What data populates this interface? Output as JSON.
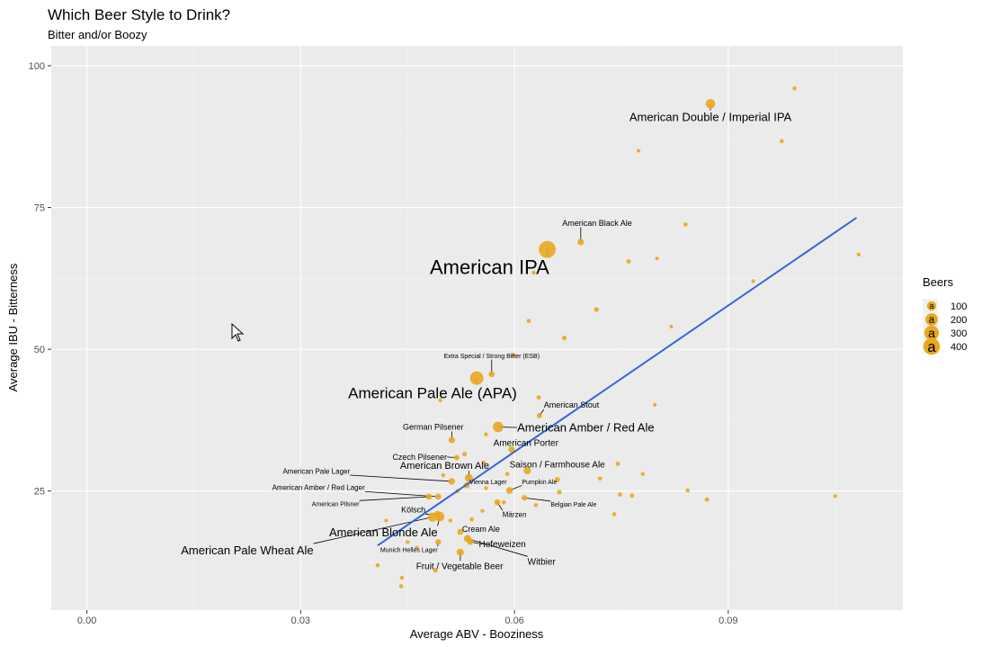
{
  "chart_data": {
    "type": "scatter",
    "title": "Which Beer Style to Drink?",
    "subtitle": "Bitter and/or Boozy",
    "xlabel": "Average ABV - Booziness",
    "ylabel": "Average IBU - Bitterness",
    "xlim": [
      -0.005,
      0.1145
    ],
    "ylim": [
      4,
      103.5
    ],
    "x_ticks": [
      0.0,
      0.03,
      0.06,
      0.09
    ],
    "x_tick_labels": [
      "0.00",
      "0.03",
      "0.06",
      "0.09"
    ],
    "y_ticks": [
      25,
      50,
      75,
      100
    ],
    "y_tick_labels": [
      "25",
      "50",
      "75",
      "100"
    ],
    "grid": true,
    "legend": {
      "title": "Beers",
      "position": "right",
      "entries": [
        {
          "label": "100",
          "value": 100
        },
        {
          "label": "200",
          "value": 200
        },
        {
          "label": "300",
          "value": 300
        },
        {
          "label": "400",
          "value": 400
        }
      ]
    },
    "point_color": "#E8A820",
    "trend_line": {
      "color": "#3366DD",
      "x": [
        0.0408,
        0.108
      ],
      "y": [
        15.4,
        73.2
      ]
    },
    "labeled_points": [
      {
        "name": "American Double / Imperial IPA",
        "x": 0.0875,
        "y": 93.3,
        "beers": 105,
        "lx": 0.0875,
        "ly": 91.0,
        "size": 13
      },
      {
        "name": "American IPA",
        "x": 0.0646,
        "y": 67.6,
        "beers": 424,
        "lx": 0.0565,
        "ly": 64.5,
        "size": 22
      },
      {
        "name": "American Black Ale",
        "x": 0.0693,
        "y": 68.9,
        "beers": 36,
        "lx": 0.0716,
        "ly": 72.3,
        "size": 9
      },
      {
        "name": "Extra Special / Strong Bitter (ESB)",
        "x": 0.0568,
        "y": 45.6,
        "beers": 28,
        "lx": 0.0568,
        "ly": 48.8,
        "size": 7
      },
      {
        "name": "American Pale Ale (APA)",
        "x": 0.0547,
        "y": 44.9,
        "beers": 245,
        "lx": 0.0485,
        "ly": 42.3,
        "size": 17
      },
      {
        "name": "American Stout",
        "x": 0.0635,
        "y": 38.3,
        "beers": 18,
        "lx": 0.068,
        "ly": 40.2,
        "size": 9
      },
      {
        "name": "American Amber / Red Ale",
        "x": 0.0577,
        "y": 36.3,
        "beers": 133,
        "lx": 0.07,
        "ly": 36.2,
        "size": 13
      },
      {
        "name": "German Pilsener",
        "x": 0.0512,
        "y": 34.0,
        "beers": 36,
        "lx": 0.0486,
        "ly": 36.3,
        "size": 9
      },
      {
        "name": "American Porter",
        "x": 0.0596,
        "y": 32.3,
        "beers": 39,
        "lx": 0.0616,
        "ly": 33.5,
        "size": 10
      },
      {
        "name": "Czech Pilsener",
        "x": 0.0519,
        "y": 30.9,
        "beers": 20,
        "lx": 0.0467,
        "ly": 31.0,
        "size": 9
      },
      {
        "name": "Saison / Farmhouse Ale",
        "x": 0.0618,
        "y": 28.6,
        "beers": 52,
        "lx": 0.066,
        "ly": 29.7,
        "size": 10
      },
      {
        "name": "American Brown Ale",
        "x": 0.0536,
        "y": 27.3,
        "beers": 70,
        "lx": 0.0502,
        "ly": 29.5,
        "size": 11
      },
      {
        "name": "American Pale Lager",
        "x": 0.0512,
        "y": 26.7,
        "beers": 39,
        "lx": 0.0322,
        "ly": 28.5,
        "size": 8
      },
      {
        "name": "Vienna Lager",
        "x": 0.0533,
        "y": 26.0,
        "beers": 30,
        "lx": 0.0563,
        "ly": 26.6,
        "size": 7
      },
      {
        "name": "Pumpkin Ale",
        "x": 0.0593,
        "y": 25.1,
        "beers": 40,
        "lx": 0.0635,
        "ly": 26.6,
        "size": 7
      },
      {
        "name": "American Amber / Red Lager",
        "x": 0.0493,
        "y": 24.0,
        "beers": 29,
        "lx": 0.0325,
        "ly": 25.6,
        "size": 8
      },
      {
        "name": "American Pilsner",
        "x": 0.048,
        "y": 24.0,
        "beers": 28,
        "lx": 0.0349,
        "ly": 22.7,
        "size": 7
      },
      {
        "name": "Belgian Pale Ale",
        "x": 0.0614,
        "y": 23.8,
        "beers": 23,
        "lx": 0.0683,
        "ly": 22.6,
        "size": 7
      },
      {
        "name": "Kölsch",
        "x": 0.0492,
        "y": 20.9,
        "beers": 42,
        "lx": 0.0458,
        "ly": 21.7,
        "size": 9
      },
      {
        "name": "Märzen",
        "x": 0.0576,
        "y": 23.0,
        "beers": 30,
        "lx": 0.06,
        "ly": 20.9,
        "size": 8
      },
      {
        "name": "American Blonde Ale",
        "x": 0.0495,
        "y": 20.5,
        "beers": 108,
        "lx": 0.0416,
        "ly": 17.7,
        "size": 13
      },
      {
        "name": "American Pale Wheat Ale",
        "x": 0.0485,
        "y": 20.4,
        "beers": 97,
        "lx": 0.0225,
        "ly": 14.6,
        "size": 13
      },
      {
        "name": "Munich Helles Lager",
        "x": 0.0493,
        "y": 16.0,
        "beers": 24,
        "lx": 0.0452,
        "ly": 14.6,
        "size": 7
      },
      {
        "name": "Cream Ale",
        "x": 0.0524,
        "y": 17.8,
        "beers": 31,
        "lx": 0.0553,
        "ly": 18.3,
        "size": 9
      },
      {
        "name": "Hefeweizen",
        "x": 0.0538,
        "y": 16.1,
        "beers": 40,
        "lx": 0.0583,
        "ly": 15.7,
        "size": 10
      },
      {
        "name": "Witbier",
        "x": 0.0534,
        "y": 16.6,
        "beers": 51,
        "lx": 0.0638,
        "ly": 12.6,
        "size": 10
      },
      {
        "name": "Fruit / Vegetable Beer",
        "x": 0.0524,
        "y": 14.2,
        "beers": 49,
        "lx": 0.0523,
        "ly": 11.8,
        "size": 10
      }
    ],
    "unlabeled_points": [
      {
        "x": 0.0993,
        "y": 96.0,
        "beers": 8
      },
      {
        "x": 0.0975,
        "y": 86.7,
        "beers": 8
      },
      {
        "x": 0.0774,
        "y": 85.0,
        "beers": 5
      },
      {
        "x": 0.084,
        "y": 72.0,
        "beers": 8
      },
      {
        "x": 0.0627,
        "y": 63.5,
        "beers": 6
      },
      {
        "x": 0.076,
        "y": 65.5,
        "beers": 10
      },
      {
        "x": 0.08,
        "y": 66.0,
        "beers": 4
      },
      {
        "x": 0.1083,
        "y": 66.7,
        "beers": 6
      },
      {
        "x": 0.0715,
        "y": 57.0,
        "beers": 14
      },
      {
        "x": 0.0935,
        "y": 62.0,
        "beers": 6
      },
      {
        "x": 0.062,
        "y": 55.0,
        "beers": 8
      },
      {
        "x": 0.067,
        "y": 52.0,
        "beers": 12
      },
      {
        "x": 0.082,
        "y": 54.0,
        "beers": 5
      },
      {
        "x": 0.0598,
        "y": 49.0,
        "beers": 8
      },
      {
        "x": 0.0496,
        "y": 41.0,
        "beers": 6
      },
      {
        "x": 0.0634,
        "y": 41.5,
        "beers": 10
      },
      {
        "x": 0.0797,
        "y": 40.2,
        "beers": 4
      },
      {
        "x": 0.056,
        "y": 35.0,
        "beers": 6
      },
      {
        "x": 0.053,
        "y": 31.5,
        "beers": 10
      },
      {
        "x": 0.05,
        "y": 27.8,
        "beers": 6
      },
      {
        "x": 0.0557,
        "y": 30.0,
        "beers": 8
      },
      {
        "x": 0.059,
        "y": 28.0,
        "beers": 8
      },
      {
        "x": 0.066,
        "y": 27.0,
        "beers": 18
      },
      {
        "x": 0.072,
        "y": 27.2,
        "beers": 8
      },
      {
        "x": 0.0745,
        "y": 29.8,
        "beers": 10
      },
      {
        "x": 0.078,
        "y": 28.0,
        "beers": 5
      },
      {
        "x": 0.052,
        "y": 25.0,
        "beers": 8
      },
      {
        "x": 0.056,
        "y": 25.5,
        "beers": 6
      },
      {
        "x": 0.0585,
        "y": 23.0,
        "beers": 8
      },
      {
        "x": 0.063,
        "y": 22.5,
        "beers": 6
      },
      {
        "x": 0.0663,
        "y": 24.8,
        "beers": 12
      },
      {
        "x": 0.0748,
        "y": 24.4,
        "beers": 8
      },
      {
        "x": 0.0765,
        "y": 24.2,
        "beers": 10
      },
      {
        "x": 0.0843,
        "y": 25.1,
        "beers": 8
      },
      {
        "x": 0.087,
        "y": 23.5,
        "beers": 10
      },
      {
        "x": 0.105,
        "y": 24.1,
        "beers": 6
      },
      {
        "x": 0.074,
        "y": 20.9,
        "beers": 8
      },
      {
        "x": 0.054,
        "y": 20.0,
        "beers": 8
      },
      {
        "x": 0.0555,
        "y": 21.5,
        "beers": 6
      },
      {
        "x": 0.051,
        "y": 19.8,
        "beers": 6
      },
      {
        "x": 0.045,
        "y": 16.0,
        "beers": 6
      },
      {
        "x": 0.0463,
        "y": 15.0,
        "beers": 6
      },
      {
        "x": 0.0408,
        "y": 11.9,
        "beers": 8
      },
      {
        "x": 0.0442,
        "y": 9.7,
        "beers": 6
      },
      {
        "x": 0.0441,
        "y": 8.2,
        "beers": 8
      },
      {
        "x": 0.0489,
        "y": 11.0,
        "beers": 10
      },
      {
        "x": 0.042,
        "y": 19.8,
        "beers": 5
      }
    ]
  }
}
